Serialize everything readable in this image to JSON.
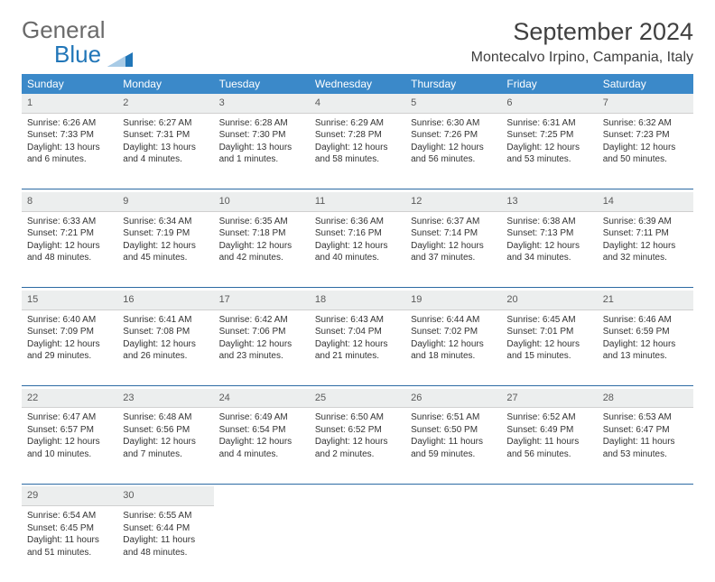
{
  "logo": {
    "part1": "General",
    "part2": "Blue",
    "color_gray": "#6a6a6a",
    "color_blue": "#2176b8"
  },
  "title": "September 2024",
  "location": "Montecalvo Irpino, Campania, Italy",
  "colors": {
    "header_bg": "#3b89c9",
    "header_text": "#ffffff",
    "daynum_bg": "#eceeee",
    "divider": "#2c6aa3",
    "body_bg": "#ffffff",
    "text": "#333333"
  },
  "weekdays": [
    "Sunday",
    "Monday",
    "Tuesday",
    "Wednesday",
    "Thursday",
    "Friday",
    "Saturday"
  ],
  "weeks": [
    [
      {
        "n": "1",
        "sunrise": "6:26 AM",
        "sunset": "7:33 PM",
        "day_h": "13",
        "day_m": "6"
      },
      {
        "n": "2",
        "sunrise": "6:27 AM",
        "sunset": "7:31 PM",
        "day_h": "13",
        "day_m": "4"
      },
      {
        "n": "3",
        "sunrise": "6:28 AM",
        "sunset": "7:30 PM",
        "day_h": "13",
        "day_m": "1"
      },
      {
        "n": "4",
        "sunrise": "6:29 AM",
        "sunset": "7:28 PM",
        "day_h": "12",
        "day_m": "58"
      },
      {
        "n": "5",
        "sunrise": "6:30 AM",
        "sunset": "7:26 PM",
        "day_h": "12",
        "day_m": "56"
      },
      {
        "n": "6",
        "sunrise": "6:31 AM",
        "sunset": "7:25 PM",
        "day_h": "12",
        "day_m": "53"
      },
      {
        "n": "7",
        "sunrise": "6:32 AM",
        "sunset": "7:23 PM",
        "day_h": "12",
        "day_m": "50"
      }
    ],
    [
      {
        "n": "8",
        "sunrise": "6:33 AM",
        "sunset": "7:21 PM",
        "day_h": "12",
        "day_m": "48"
      },
      {
        "n": "9",
        "sunrise": "6:34 AM",
        "sunset": "7:19 PM",
        "day_h": "12",
        "day_m": "45"
      },
      {
        "n": "10",
        "sunrise": "6:35 AM",
        "sunset": "7:18 PM",
        "day_h": "12",
        "day_m": "42"
      },
      {
        "n": "11",
        "sunrise": "6:36 AM",
        "sunset": "7:16 PM",
        "day_h": "12",
        "day_m": "40"
      },
      {
        "n": "12",
        "sunrise": "6:37 AM",
        "sunset": "7:14 PM",
        "day_h": "12",
        "day_m": "37"
      },
      {
        "n": "13",
        "sunrise": "6:38 AM",
        "sunset": "7:13 PM",
        "day_h": "12",
        "day_m": "34"
      },
      {
        "n": "14",
        "sunrise": "6:39 AM",
        "sunset": "7:11 PM",
        "day_h": "12",
        "day_m": "32"
      }
    ],
    [
      {
        "n": "15",
        "sunrise": "6:40 AM",
        "sunset": "7:09 PM",
        "day_h": "12",
        "day_m": "29"
      },
      {
        "n": "16",
        "sunrise": "6:41 AM",
        "sunset": "7:08 PM",
        "day_h": "12",
        "day_m": "26"
      },
      {
        "n": "17",
        "sunrise": "6:42 AM",
        "sunset": "7:06 PM",
        "day_h": "12",
        "day_m": "23"
      },
      {
        "n": "18",
        "sunrise": "6:43 AM",
        "sunset": "7:04 PM",
        "day_h": "12",
        "day_m": "21"
      },
      {
        "n": "19",
        "sunrise": "6:44 AM",
        "sunset": "7:02 PM",
        "day_h": "12",
        "day_m": "18"
      },
      {
        "n": "20",
        "sunrise": "6:45 AM",
        "sunset": "7:01 PM",
        "day_h": "12",
        "day_m": "15"
      },
      {
        "n": "21",
        "sunrise": "6:46 AM",
        "sunset": "6:59 PM",
        "day_h": "12",
        "day_m": "13"
      }
    ],
    [
      {
        "n": "22",
        "sunrise": "6:47 AM",
        "sunset": "6:57 PM",
        "day_h": "12",
        "day_m": "10"
      },
      {
        "n": "23",
        "sunrise": "6:48 AM",
        "sunset": "6:56 PM",
        "day_h": "12",
        "day_m": "7"
      },
      {
        "n": "24",
        "sunrise": "6:49 AM",
        "sunset": "6:54 PM",
        "day_h": "12",
        "day_m": "4"
      },
      {
        "n": "25",
        "sunrise": "6:50 AM",
        "sunset": "6:52 PM",
        "day_h": "12",
        "day_m": "2"
      },
      {
        "n": "26",
        "sunrise": "6:51 AM",
        "sunset": "6:50 PM",
        "day_h": "11",
        "day_m": "59"
      },
      {
        "n": "27",
        "sunrise": "6:52 AM",
        "sunset": "6:49 PM",
        "day_h": "11",
        "day_m": "56"
      },
      {
        "n": "28",
        "sunrise": "6:53 AM",
        "sunset": "6:47 PM",
        "day_h": "11",
        "day_m": "53"
      }
    ],
    [
      {
        "n": "29",
        "sunrise": "6:54 AM",
        "sunset": "6:45 PM",
        "day_h": "11",
        "day_m": "51"
      },
      {
        "n": "30",
        "sunrise": "6:55 AM",
        "sunset": "6:44 PM",
        "day_h": "11",
        "day_m": "48"
      },
      null,
      null,
      null,
      null,
      null
    ]
  ],
  "labels": {
    "sunrise": "Sunrise:",
    "sunset": "Sunset:",
    "daylight": "Daylight:",
    "hours": "hours",
    "and": "and",
    "minutes": "minutes."
  }
}
